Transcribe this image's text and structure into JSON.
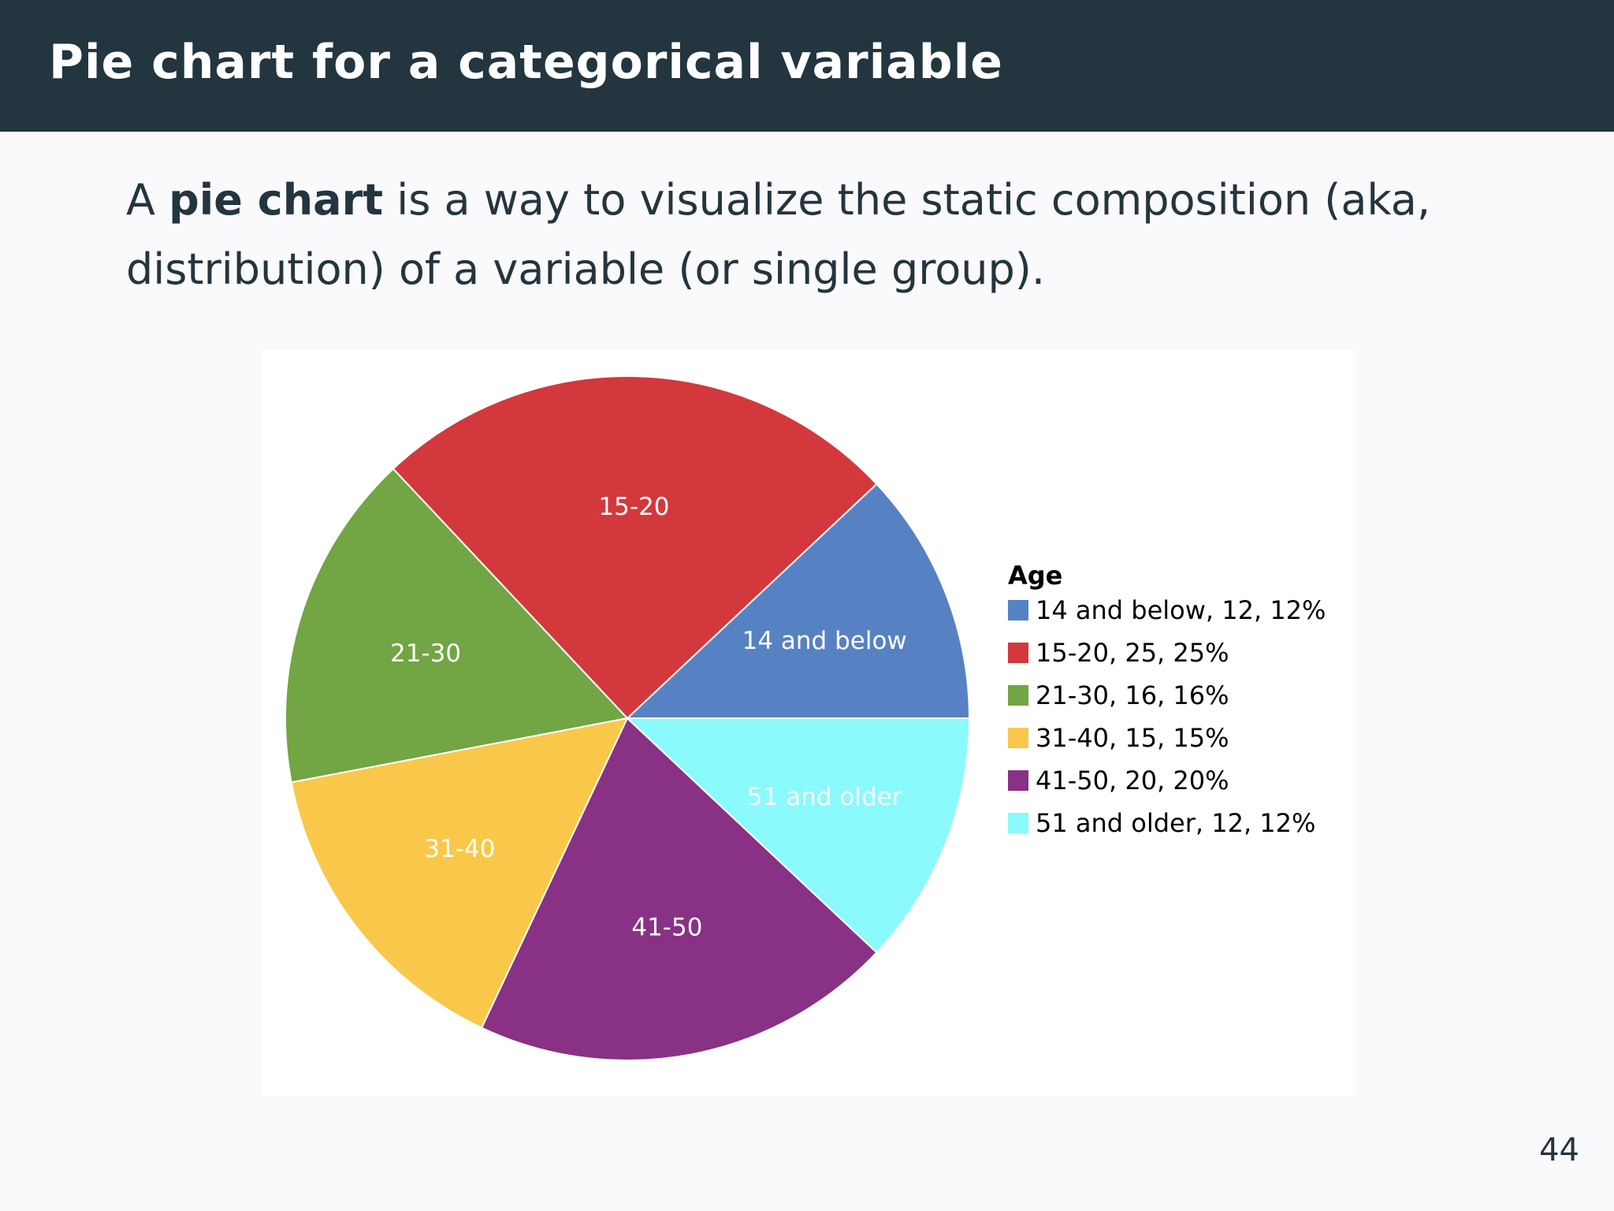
{
  "slide": {
    "title": "Pie chart for a categorical variable",
    "text_before": "A ",
    "text_strong": "pie chart",
    "text_after": " is a way to visualize the static composition (aka, distribution) of a variable (or single group).",
    "page_number": "44"
  },
  "chart_data": {
    "type": "pie",
    "legend_title": "Age",
    "legend_position": "right",
    "slices": [
      {
        "label": "14 and below",
        "value": 12,
        "percent": 12,
        "legend": "14 and below, 12, 12%",
        "color": "#5682c3"
      },
      {
        "label": "15-20",
        "value": 25,
        "percent": 25,
        "legend": "15-20, 25, 25%",
        "color": "#d3383d"
      },
      {
        "label": "21-30",
        "value": 16,
        "percent": 16,
        "legend": "21-30, 16, 16%",
        "color": "#72a543"
      },
      {
        "label": "31-40",
        "value": 15,
        "percent": 15,
        "legend": "31-40, 15, 15%",
        "color": "#f9c84a"
      },
      {
        "label": "41-50",
        "value": 20,
        "percent": 20,
        "legend": "41-50, 20, 20%",
        "color": "#883185"
      },
      {
        "label": "51 and older",
        "value": 12,
        "percent": 12,
        "legend": "51 and older, 12, 12%",
        "color": "#8afafd"
      }
    ]
  }
}
